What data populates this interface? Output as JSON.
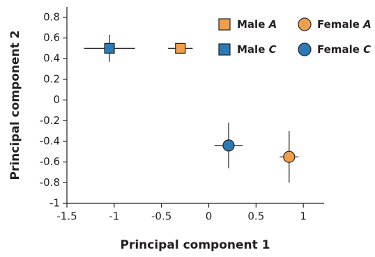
{
  "chart_data": {
    "type": "scatter",
    "xlabel": "Principal component 1",
    "ylabel": "Principal component 2",
    "xlim": [
      -1.5,
      1.22
    ],
    "xticks": [
      -1.5,
      -1,
      -0.5,
      0,
      0.5,
      1
    ],
    "ylim": [
      -1,
      0.9
    ],
    "yticks": [
      0.8,
      0.6,
      0.4,
      0.2,
      0,
      -0.2,
      -0.4,
      -0.6,
      -0.8,
      -1
    ],
    "legend": "top-right",
    "series": [
      {
        "name": "Male A",
        "color": "#f0a04b",
        "marker": "square",
        "x": [
          -0.3
        ],
        "values": [
          0.5
        ],
        "xerr": [
          0.13
        ],
        "yerr": [
          0.04
        ]
      },
      {
        "name": "Female A",
        "color": "#f0a04b",
        "marker": "circle",
        "x": [
          0.85
        ],
        "values": [
          -0.55
        ],
        "xerr": [
          0.1
        ],
        "yerr": [
          0.25
        ]
      },
      {
        "name": "Male C",
        "color": "#2a7ab8",
        "marker": "square",
        "x": [
          -1.05
        ],
        "values": [
          0.5
        ],
        "xerr": [
          0.27
        ],
        "yerr": [
          0.13
        ]
      },
      {
        "name": "Female C",
        "color": "#2a7ab8",
        "marker": "circle",
        "x": [
          0.21
        ],
        "values": [
          -0.44
        ],
        "xerr": [
          0.15
        ],
        "yerr": [
          0.22
        ]
      }
    ]
  }
}
